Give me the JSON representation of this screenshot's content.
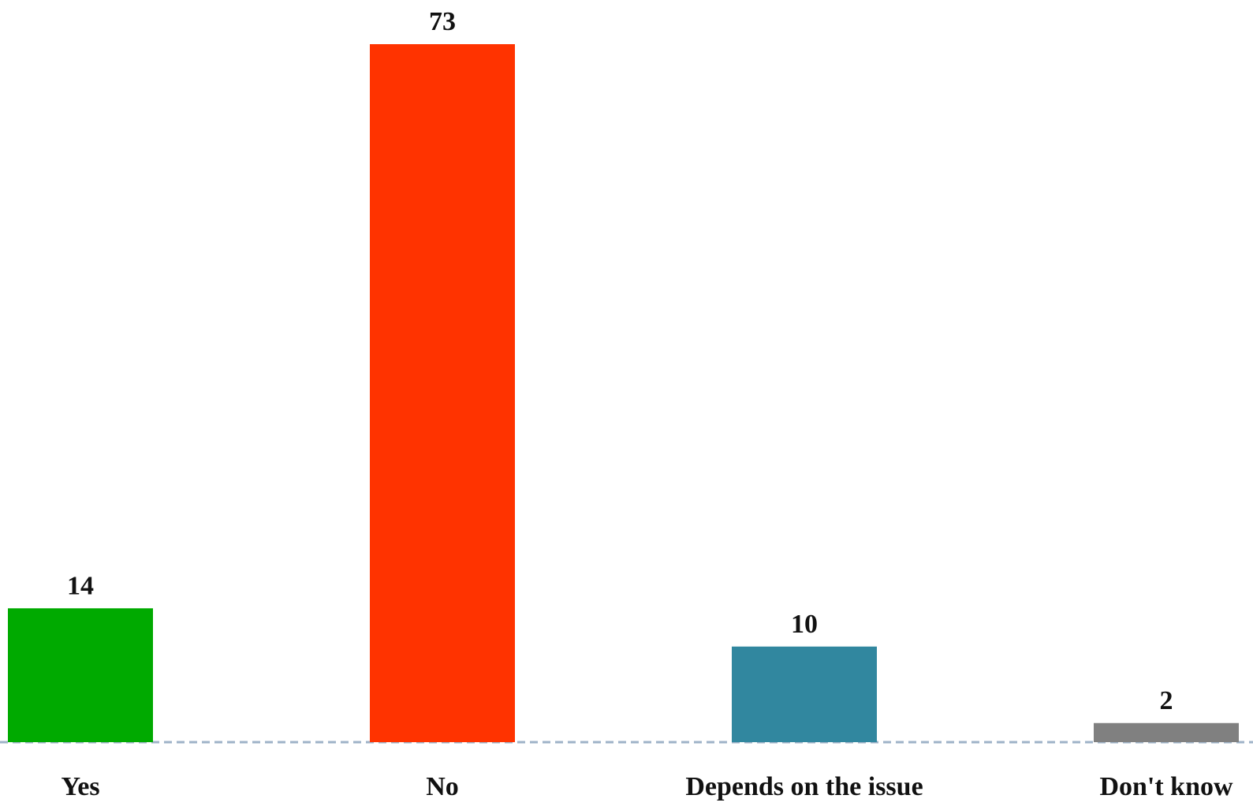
{
  "chart_data": {
    "type": "bar",
    "categories": [
      "Yes",
      "No",
      "Depends on the issue",
      "Don't know"
    ],
    "values": [
      14,
      73,
      10,
      2
    ],
    "colors": [
      "#00aa00",
      "#ff3300",
      "#31879f",
      "#808080"
    ],
    "value_labels": [
      "14",
      "73",
      "10",
      "2"
    ],
    "title": "",
    "xlabel": "",
    "ylabel": "",
    "ylim": [
      0,
      73
    ],
    "grid": false,
    "legend": "none",
    "baseline_style": "dashed"
  }
}
